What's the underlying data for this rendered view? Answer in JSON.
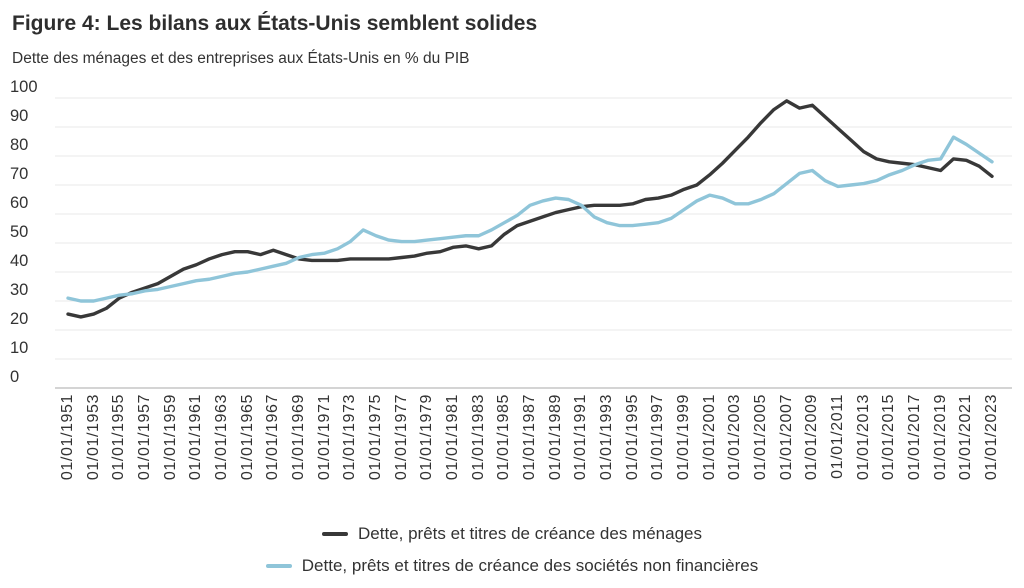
{
  "header": {
    "title": "Figure 4: Les bilans aux États-Unis semblent solides",
    "subtitle": "Dette des ménages et des entreprises aux États-Unis en % du PIB"
  },
  "legend": {
    "items": [
      {
        "label": "Dette, prêts et titres de créance des ménages",
        "color": "#383838"
      },
      {
        "label": "Dette, prêts et titres de créance des sociétés non financières",
        "color": "#8fc5d9"
      }
    ]
  },
  "chart_data": {
    "type": "line",
    "title": "Figure 4: Les bilans aux États-Unis semblent solides",
    "subtitle": "Dette des ménages et des entreprises aux États-Unis en % du PIB",
    "ylabel": "% du PIB",
    "ylim": [
      0,
      100
    ],
    "yticks": [
      0,
      10,
      20,
      30,
      40,
      50,
      60,
      70,
      80,
      90,
      100
    ],
    "grid": "horizontal",
    "legend_position": "bottom",
    "xtick_labels": [
      "01/01/1951",
      "01/01/1953",
      "01/01/1955",
      "01/01/1957",
      "01/01/1959",
      "01/01/1961",
      "01/01/1963",
      "01/01/1965",
      "01/01/1967",
      "01/01/1969",
      "01/01/1971",
      "01/01/1973",
      "01/01/1975",
      "01/01/1977",
      "01/01/1979",
      "01/01/1981",
      "01/01/1983",
      "01/01/1985",
      "01/01/1987",
      "01/01/1989",
      "01/01/1991",
      "01/01/1993",
      "01/01/1995",
      "01/01/1997",
      "01/01/1999",
      "01/01/2001",
      "01/01/2003",
      "01/01/2005",
      "01/01/2007",
      "01/01/2009",
      "01/01/2011",
      "01/01/2013",
      "01/01/2015",
      "01/01/2017",
      "01/01/2019",
      "01/01/2021",
      "01/01/2023"
    ],
    "years": [
      1951,
      1952,
      1953,
      1954,
      1955,
      1956,
      1957,
      1958,
      1959,
      1960,
      1961,
      1962,
      1963,
      1964,
      1965,
      1966,
      1967,
      1968,
      1969,
      1970,
      1971,
      1972,
      1973,
      1974,
      1975,
      1976,
      1977,
      1978,
      1979,
      1980,
      1981,
      1982,
      1983,
      1984,
      1985,
      1986,
      1987,
      1988,
      1989,
      1990,
      1991,
      1992,
      1993,
      1994,
      1995,
      1996,
      1997,
      1998,
      1999,
      2000,
      2001,
      2002,
      2003,
      2004,
      2005,
      2006,
      2007,
      2008,
      2009,
      2010,
      2011,
      2012,
      2013,
      2014,
      2015,
      2016,
      2017,
      2018,
      2019,
      2020,
      2021,
      2022,
      2023
    ],
    "series": [
      {
        "name": "Dette, prêts et titres de créance des ménages",
        "color": "#383838",
        "values": [
          25.5,
          24.5,
          25.5,
          27.5,
          31,
          33,
          34.5,
          36,
          38.5,
          41,
          42.5,
          44.5,
          46,
          47,
          47,
          46,
          47.5,
          46,
          44.5,
          44,
          44,
          44,
          44.5,
          44.5,
          44.5,
          44.5,
          45,
          45.5,
          46.5,
          47,
          48.5,
          49,
          48,
          49,
          53,
          56,
          57.5,
          59,
          60.5,
          61.5,
          62.5,
          63,
          63,
          63,
          63.5,
          65,
          65.5,
          66.5,
          68.5,
          70,
          73.5,
          77.5,
          82,
          86.5,
          91.5,
          96,
          99,
          96.5,
          97.5,
          93.5,
          89.5,
          85.5,
          81.5,
          79,
          78,
          77.5,
          77,
          76,
          75,
          79,
          78.5,
          76.5,
          73
        ]
      },
      {
        "name": "Dette, prêts et titres de créance des sociétés non financières",
        "color": "#8fc5d9",
        "values": [
          31,
          30,
          30,
          31,
          32,
          32.5,
          33.5,
          34,
          35,
          36,
          37,
          37.5,
          38.5,
          39.5,
          40,
          41,
          42,
          43,
          45,
          46,
          46.5,
          48,
          50.5,
          54.5,
          52.5,
          51,
          50.5,
          50.5,
          51,
          51.5,
          52,
          52.5,
          52.5,
          54.5,
          57,
          59.5,
          63,
          64.5,
          65.5,
          65,
          63,
          59,
          57,
          56,
          56,
          56.5,
          57,
          58.5,
          61.5,
          64.5,
          66.5,
          65.5,
          63.5,
          63.5,
          65,
          67,
          70.5,
          74,
          75,
          71.5,
          69.5,
          70,
          70.5,
          71.5,
          73.5,
          75,
          77,
          78.5,
          79,
          86.5,
          84,
          81,
          78
        ]
      }
    ],
    "colors": {
      "grid": "#e8e8e8",
      "axis": "#c6c6c6",
      "tick_text": "#333333"
    }
  }
}
